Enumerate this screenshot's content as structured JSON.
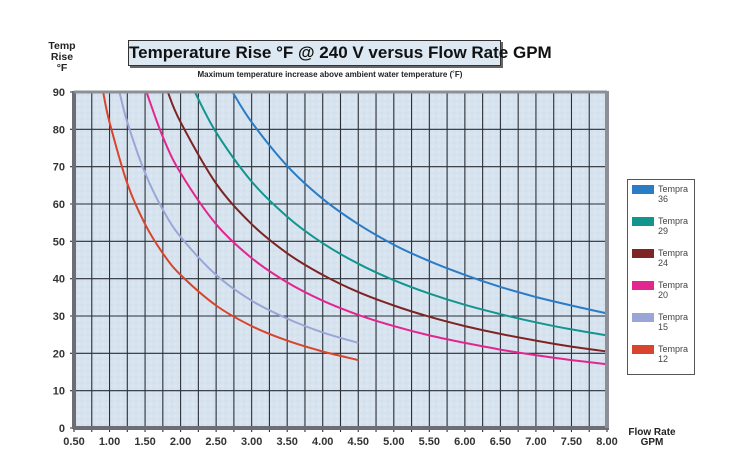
{
  "chart_data": {
    "type": "line",
    "title": "Temperature Rise °F @ 240 V versus Flow Rate GPM",
    "subtitle": "Maximum temperature increase above ambient water temperature (˚F)",
    "ylabel_lines": [
      "Temp",
      "Rise",
      "°F"
    ],
    "xlabel_lines": [
      "Flow Rate",
      "GPM"
    ],
    "xlim": [
      0.5,
      8.0
    ],
    "ylim": [
      0,
      90
    ],
    "x_ticks": [
      "0.50",
      "1.00",
      "1.50",
      "2.00",
      "2.50",
      "3.00",
      "3.50",
      "4.00",
      "4.50",
      "5.00",
      "5.50",
      "6.00",
      "6.50",
      "7.00",
      "7.50",
      "8.00"
    ],
    "y_ticks": [
      "0",
      "10",
      "20",
      "30",
      "40",
      "50",
      "60",
      "70",
      "80",
      "90"
    ],
    "grid": true,
    "x_minor_step": 0.25,
    "legend_position": "right",
    "series": [
      {
        "name_line1": "Tempra",
        "name_line2": "36",
        "color": "#2a7cc6",
        "x": [
          2.73,
          3.0,
          3.5,
          4.0,
          4.5,
          5.0,
          5.5,
          6.0,
          6.5,
          7.0,
          7.5,
          8.0
        ],
        "y": [
          90,
          81.9,
          70.2,
          61.4,
          54.6,
          49.1,
          44.7,
          41.0,
          37.8,
          35.1,
          32.8,
          30.7
        ]
      },
      {
        "name_line1": "Tempra",
        "name_line2": "29",
        "color": "#13958f",
        "x": [
          2.2,
          2.5,
          3.0,
          3.5,
          4.0,
          4.5,
          5.0,
          5.5,
          6.0,
          6.5,
          7.0,
          7.5,
          8.0
        ],
        "y": [
          90,
          79.2,
          66.0,
          56.6,
          49.5,
          44.0,
          39.6,
          36.0,
          33.0,
          30.5,
          28.3,
          26.4,
          24.8
        ]
      },
      {
        "name_line1": "Tempra",
        "name_line2": "24",
        "color": "#7e2424",
        "x": [
          1.82,
          2.0,
          2.5,
          3.0,
          3.5,
          4.0,
          4.5,
          5.0,
          5.5,
          6.0,
          6.5,
          7.0,
          7.5,
          8.0
        ],
        "y": [
          90,
          81.9,
          65.5,
          54.6,
          46.8,
          41.0,
          36.4,
          32.8,
          29.8,
          27.3,
          25.2,
          23.4,
          21.8,
          20.5
        ]
      },
      {
        "name_line1": "Tempra",
        "name_line2": "20",
        "color": "#e3268f",
        "x": [
          1.52,
          1.75,
          2.0,
          2.5,
          3.0,
          3.5,
          4.0,
          4.5,
          5.0,
          5.5,
          6.0,
          6.5,
          7.0,
          7.5,
          8.0
        ],
        "y": [
          90,
          78.0,
          68.3,
          54.6,
          45.5,
          39.0,
          34.1,
          30.3,
          27.3,
          24.8,
          22.8,
          21.0,
          19.5,
          18.2,
          17.1
        ]
      },
      {
        "name_line1": "Tempra",
        "name_line2": "15",
        "color": "#9aa6d6",
        "x": [
          1.14,
          1.25,
          1.5,
          1.75,
          2.0,
          2.5,
          3.0,
          3.5,
          4.0,
          4.5
        ],
        "y": [
          90,
          81.9,
          68.3,
          58.5,
          51.2,
          41.0,
          34.1,
          29.3,
          25.6,
          22.8
        ]
      },
      {
        "name_line1": "Tempra",
        "name_line2": "12",
        "color": "#d8452c",
        "x": [
          0.91,
          1.0,
          1.25,
          1.5,
          1.75,
          2.0,
          2.5,
          3.0,
          3.5,
          4.0,
          4.5
        ],
        "y": [
          90,
          81.9,
          65.5,
          54.6,
          46.8,
          41.0,
          32.8,
          27.3,
          23.4,
          20.5,
          18.2
        ]
      }
    ]
  }
}
